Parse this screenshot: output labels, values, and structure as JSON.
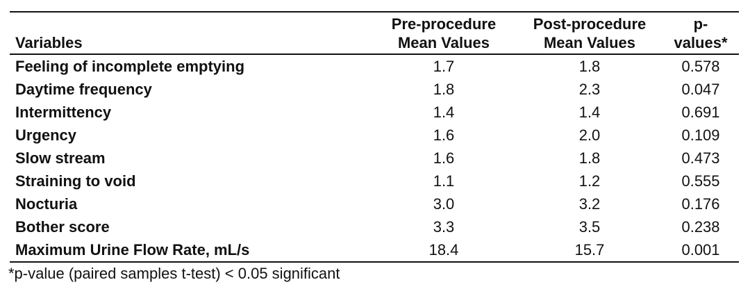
{
  "table": {
    "headers": {
      "variable": "Variables",
      "pre_line1": "Pre-procedure",
      "pre_line2": "Mean Values",
      "post_line1": "Post-procedure",
      "post_line2": "Mean Values",
      "p_line1": "p-",
      "p_line2": "values*"
    },
    "rows": [
      {
        "variable": "Feeling of incomplete emptying",
        "pre": "1.7",
        "post": "1.8",
        "p": "0.578"
      },
      {
        "variable": "Daytime frequency",
        "pre": "1.8",
        "post": "2.3",
        "p": "0.047"
      },
      {
        "variable": "Intermittency",
        "pre": "1.4",
        "post": "1.4",
        "p": "0.691"
      },
      {
        "variable": "Urgency",
        "pre": "1.6",
        "post": "2.0",
        "p": "0.109"
      },
      {
        "variable": "Slow stream",
        "pre": "1.6",
        "post": "1.8",
        "p": "0.473"
      },
      {
        "variable": "Straining to void",
        "pre": "1.1",
        "post": "1.2",
        "p": "0.555"
      },
      {
        "variable": "Nocturia",
        "pre": "3.0",
        "post": "3.2",
        "p": "0.176"
      },
      {
        "variable": "Bother score",
        "pre": "3.3",
        "post": "3.5",
        "p": "0.238"
      },
      {
        "variable": "Maximum Urine Flow Rate, mL/s",
        "pre": "18.4",
        "post": "15.7",
        "p": "0.001"
      }
    ]
  },
  "footnote": "*p-value (paired samples t-test) < 0.05 significant"
}
